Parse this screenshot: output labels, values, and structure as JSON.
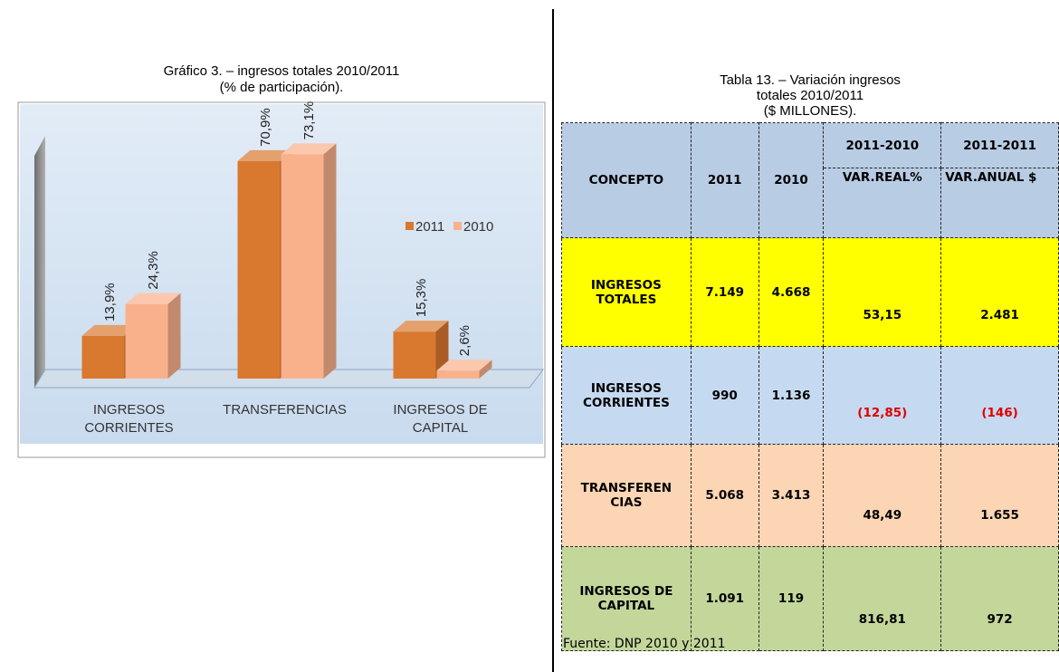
{
  "chart_data": {
    "type": "bar",
    "title": "Gráfico  3. – ingresos totales 2010/2011",
    "subtitle": "(% de participación).",
    "categories": [
      "INGRESOS CORRIENTES",
      "TRANSFERENCIAS",
      "INGRESOS DE CAPITAL"
    ],
    "series": [
      {
        "name": "2011",
        "color": "#d9782f",
        "values": [
          13.9,
          70.9,
          15.3
        ],
        "value_labels": [
          "13,9%",
          "70,9%",
          "15,3%"
        ]
      },
      {
        "name": "2010",
        "color": "#f9b18c",
        "values": [
          24.3,
          73.1,
          2.6
        ],
        "value_labels": [
          "24,3%",
          "73,1%",
          "2,6%"
        ]
      }
    ],
    "ylim": [
      0,
      80
    ]
  },
  "table": {
    "title": "Tabla  13. – Variación ingresos totales 2010/2011",
    "subtitle": "($ MILLONES).",
    "header": {
      "concept": "CONCEPTO",
      "years": [
        "2011",
        "2010"
      ],
      "groups": [
        "2011-2010",
        "2011-2011"
      ],
      "subheaders": [
        "VAR.REAL%",
        "VAR.ANUAL $"
      ],
      "color": "#b8cce4"
    },
    "rows": [
      {
        "cells": [
          "INGRESOS TOTALES",
          "7.149",
          "4.668",
          "53,15",
          "2.481"
        ],
        "color": "#ffff00"
      },
      {
        "cells": [
          "INGRESOS CORRIENTES",
          "990",
          "1.136",
          "(12,85)",
          "(146)"
        ],
        "color": "#c5d9f1"
      },
      {
        "cells": [
          "TRANSFEREN CIAS",
          "5.068",
          "3.413",
          "48,49",
          "1.655"
        ],
        "color": "#fcd5b4"
      },
      {
        "cells": [
          "INGRESOS DE CAPITAL",
          "1.091",
          "119",
          "816,81",
          "972"
        ],
        "color": "#c4d79b"
      }
    ],
    "source": "Fuente: DNP 2010 y 2011"
  }
}
